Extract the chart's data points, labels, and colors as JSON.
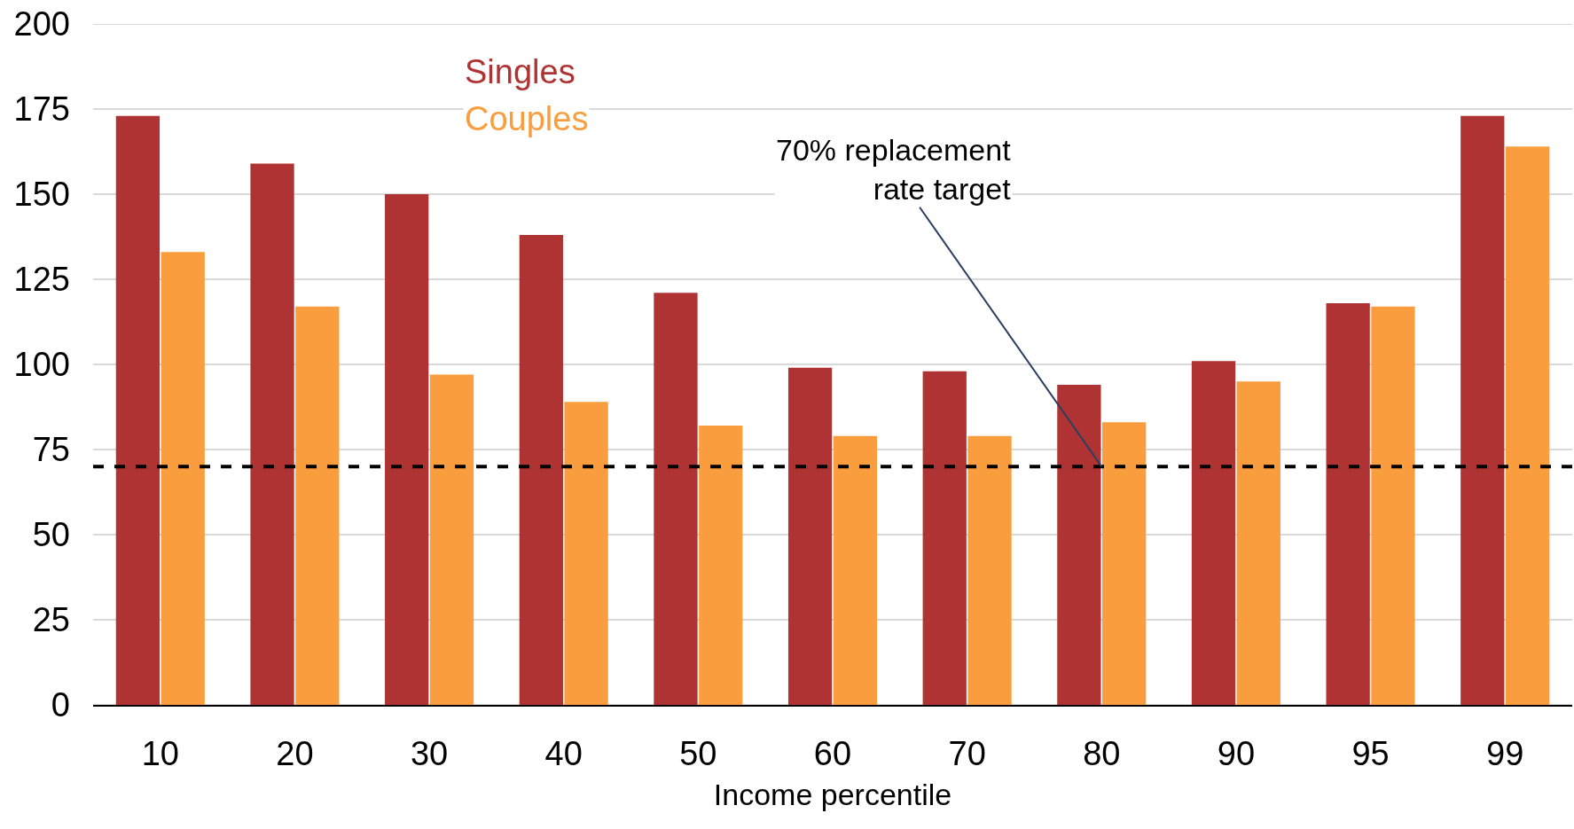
{
  "chart_data": {
    "type": "bar",
    "xlabel": "Income percentile",
    "categories": [
      "10",
      "20",
      "30",
      "40",
      "50",
      "60",
      "70",
      "80",
      "90",
      "95",
      "99"
    ],
    "series": [
      {
        "name": "Singles",
        "color": "#b03333",
        "values": [
          173,
          159,
          150,
          138,
          121,
          99,
          98,
          94,
          101,
          118,
          173
        ]
      },
      {
        "name": "Couples",
        "color": "#f99d3e",
        "values": [
          133,
          117,
          97,
          89,
          82,
          79,
          79,
          83,
          95,
          117,
          164
        ]
      }
    ],
    "ylim": [
      0,
      200
    ],
    "yticks": [
      0,
      25,
      50,
      75,
      100,
      125,
      150,
      175,
      200
    ],
    "grid": "y",
    "legend": "top left",
    "ref_lines": [
      {
        "axis": "y",
        "value": 70,
        "color": "#000000",
        "line_style": "dashed"
      }
    ],
    "annotations": [
      {
        "text": "70% replacement\nrate target",
        "x": "80",
        "y": 70
      }
    ]
  }
}
